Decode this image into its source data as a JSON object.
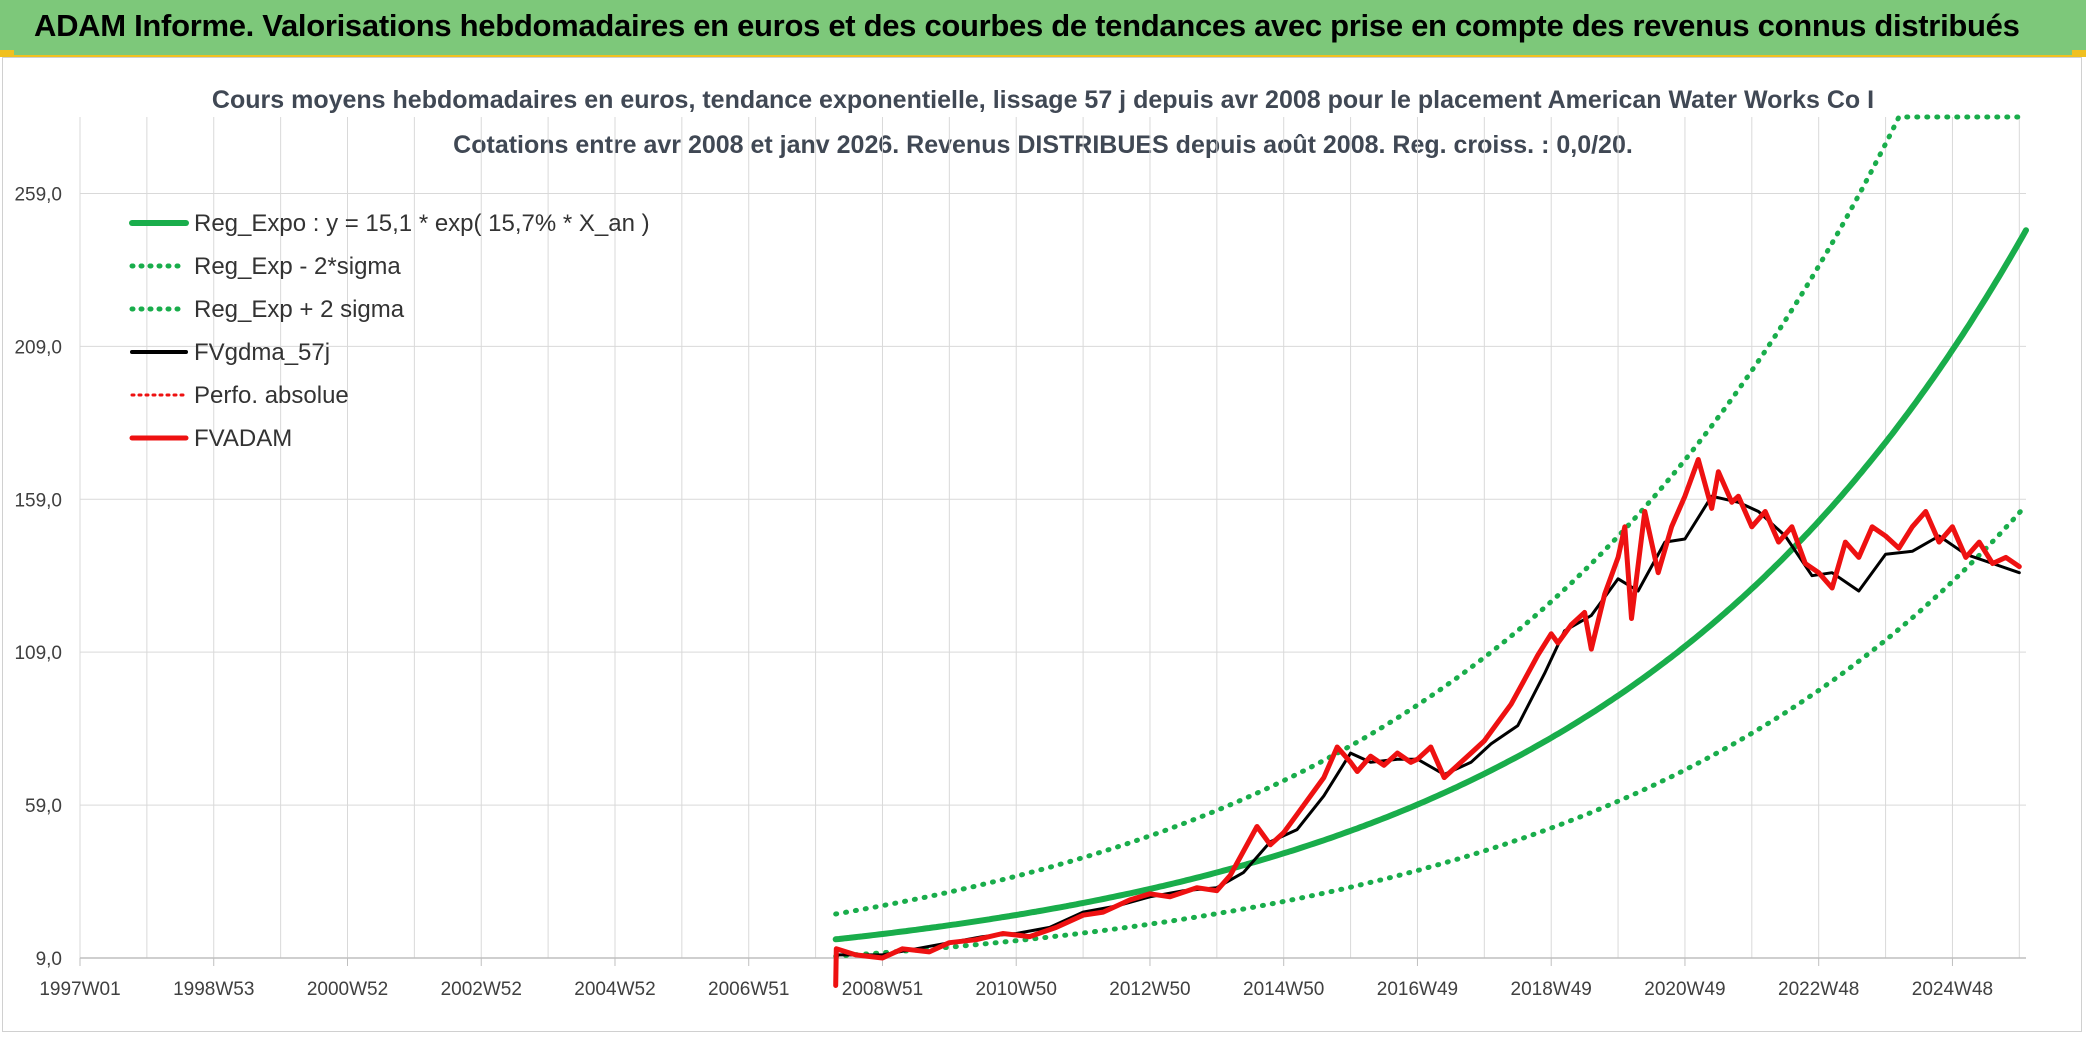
{
  "header": {
    "title": "ADAM Informe. Valorisations hebdomadaires en euros et des courbes de tendances avec prise en compte des revenus connus distribués"
  },
  "colors": {
    "banner": "#7dc87a",
    "accent": "#f0c020",
    "trend": "#19ad4b",
    "gdma": "#000000",
    "adam": "#ee1111",
    "perfo": "#ee1111"
  },
  "chart_data": {
    "type": "line",
    "title": "Cours moyens hebdomadaires en euros, tendance exponentielle, lissage 57 j depuis avr 2008 pour le placement American Water Works Co I",
    "subtitle": "Cotations entre avr 2008 et janv 2026. Revenus DISTRIBUES depuis août 2008. Reg. croiss. : 0,0/20.",
    "xlabel": "",
    "ylabel": "",
    "x_ticks": [
      "1997W01",
      "1998W53",
      "2000W52",
      "2002W52",
      "2004W52",
      "2006W51",
      "2008W51",
      "2010W50",
      "2012W50",
      "2014W50",
      "2016W49",
      "2018W49",
      "2020W49",
      "2022W48",
      "2024W48"
    ],
    "x_range": [
      1997.0,
      2026.1
    ],
    "y_ticks": [
      "9,0",
      "59,0",
      "109,0",
      "159,0",
      "209,0",
      "259,0"
    ],
    "ylim": [
      9,
      284
    ],
    "grid": true,
    "legend_position": "top-left",
    "legend": [
      {
        "label": "Reg_Expo : y = 15,1 * exp( 15,7% *  X_an )",
        "style": "solid-green"
      },
      {
        "label": "Reg_Exp - 2*sigma",
        "style": "dotted-green"
      },
      {
        "label": "Reg_Exp + 2 sigma",
        "style": "dotted-green"
      },
      {
        "label": "FVgdma_57j",
        "style": "solid-black"
      },
      {
        "label": "Perfo. absolue",
        "style": "dotted-red"
      },
      {
        "label": "FVADAM",
        "style": "solid-red"
      }
    ],
    "series": [
      {
        "name": "Reg_Expo : y = 15,1 * exp( 15,7% *  X_an )",
        "kind": "exp",
        "x0": 2008.3,
        "x1": 2026.1,
        "a": 15.1,
        "b": 0.157
      },
      {
        "name": "Reg_Exp - 2*sigma",
        "kind": "exp",
        "x0": 2008.3,
        "x1": 2026.1,
        "a": 9.6,
        "b": 0.157
      },
      {
        "name": "Reg_Exp + 2 sigma",
        "kind": "exp",
        "x0": 2008.3,
        "x1": 2026.1,
        "a": 23.4,
        "b": 0.157,
        "cap": 284
      },
      {
        "name": "FVgdma_57j",
        "x": [
          2008.3,
          2009.0,
          2009.5,
          2010.0,
          2010.5,
          2011.0,
          2011.5,
          2012.0,
          2012.5,
          2013.0,
          2013.5,
          2014.0,
          2014.4,
          2014.8,
          2015.2,
          2015.6,
          2016.0,
          2016.3,
          2016.7,
          2017.0,
          2017.4,
          2017.8,
          2018.1,
          2018.5,
          2018.9,
          2019.2,
          2019.6,
          2020.0,
          2020.3,
          2020.7,
          2021.0,
          2021.4,
          2021.8,
          2022.1,
          2022.5,
          2022.9,
          2023.2,
          2023.6,
          2024.0,
          2024.4,
          2024.8,
          2025.2,
          2025.6,
          2026.0
        ],
        "y": [
          10,
          10,
          12,
          14,
          16,
          17,
          19,
          24,
          26,
          29,
          31,
          32,
          37,
          47,
          51,
          62,
          76,
          73,
          74,
          74,
          69,
          73,
          79,
          85,
          102,
          116,
          121,
          133,
          129,
          145,
          146,
          160,
          158,
          155,
          147,
          134,
          135,
          129,
          141,
          142,
          147,
          141,
          138,
          135
        ]
      },
      {
        "name": "FVADAM",
        "x": [
          2008.3,
          2008.31,
          2008.6,
          2009.0,
          2009.3,
          2009.7,
          2010.0,
          2010.4,
          2010.8,
          2011.2,
          2011.6,
          2012.0,
          2012.3,
          2012.7,
          2013.0,
          2013.3,
          2013.7,
          2014.0,
          2014.2,
          2014.4,
          2014.6,
          2014.8,
          2015.0,
          2015.2,
          2015.4,
          2015.6,
          2015.8,
          2016.0,
          2016.1,
          2016.3,
          2016.5,
          2016.7,
          2016.9,
          2017.0,
          2017.2,
          2017.4,
          2017.6,
          2017.8,
          2018.0,
          2018.2,
          2018.4,
          2018.6,
          2018.8,
          2019.0,
          2019.1,
          2019.3,
          2019.5,
          2019.6,
          2019.8,
          2020.0,
          2020.1,
          2020.2,
          2020.4,
          2020.6,
          2020.8,
          2021.0,
          2021.2,
          2021.4,
          2021.5,
          2021.7,
          2021.8,
          2022.0,
          2022.2,
          2022.4,
          2022.6,
          2022.8,
          2023.0,
          2023.2,
          2023.4,
          2023.6,
          2023.8,
          2024.0,
          2024.2,
          2024.4,
          2024.6,
          2024.8,
          2025.0,
          2025.2,
          2025.4,
          2025.6,
          2025.8,
          2026.0
        ],
        "y": [
          0,
          12,
          10,
          9,
          12,
          11,
          14,
          15,
          17,
          16,
          19,
          23,
          24,
          28,
          30,
          29,
          32,
          31,
          36,
          44,
          52,
          46,
          50,
          56,
          62,
          68,
          78,
          73,
          70,
          75,
          72,
          76,
          73,
          74,
          78,
          68,
          72,
          76,
          80,
          86,
          92,
          100,
          108,
          115,
          112,
          118,
          122,
          110,
          128,
          140,
          150,
          120,
          155,
          135,
          150,
          160,
          172,
          156,
          168,
          158,
          160,
          150,
          155,
          145,
          150,
          138,
          135,
          130,
          145,
          140,
          150,
          147,
          143,
          150,
          155,
          145,
          150,
          140,
          145,
          138,
          140,
          137
        ]
      }
    ]
  }
}
